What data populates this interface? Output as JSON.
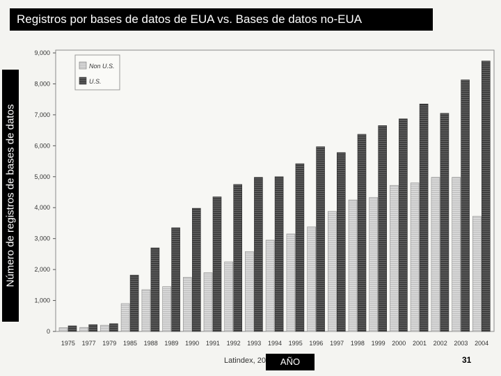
{
  "chart_data": {
    "type": "bar",
    "title": "Registros por bases de datos de EUA vs. Bases de datos no-EUA",
    "ylabel": "Número de registros de bases de datos",
    "xlabel": "AÑO",
    "categories": [
      "1975",
      "1977",
      "1979",
      "1985",
      "1988",
      "1989",
      "1990",
      "1991",
      "1992",
      "1993",
      "1994",
      "1995",
      "1996",
      "1997",
      "1998",
      "1999",
      "2000",
      "2001",
      "2002",
      "2003",
      "2004"
    ],
    "series": [
      {
        "name": "Non U.S.",
        "color": "#cfcfcf",
        "values": [
          120,
          130,
          200,
          900,
          1350,
          1450,
          1750,
          1900,
          2250,
          2580,
          2950,
          3150,
          3380,
          3880,
          4250,
          4330,
          4720,
          4800,
          4980,
          4980,
          3720
        ]
      },
      {
        "name": "U.S.",
        "color": "#555555",
        "values": [
          180,
          220,
          250,
          1820,
          2700,
          3350,
          3980,
          4350,
          4750,
          4980,
          5000,
          5420,
          5970,
          5780,
          6370,
          6650,
          6870,
          7350,
          7050,
          8130,
          8740
        ]
      }
    ],
    "ylim": [
      0,
      9000
    ],
    "yticks": [
      "0",
      "1,000",
      "2,000",
      "3,000",
      "4,000",
      "5,000",
      "6,000",
      "7,000",
      "8,000",
      "9,000"
    ],
    "legend_position": "top-left",
    "grid": false
  },
  "footer": {
    "source": "Latindex, 20",
    "page_number": "31"
  }
}
